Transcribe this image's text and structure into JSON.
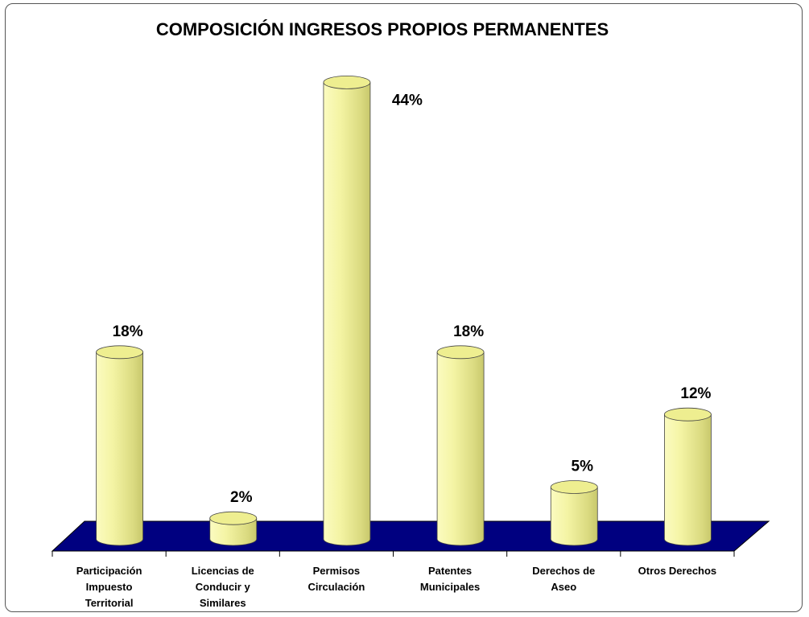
{
  "chart_data": {
    "type": "bar3d",
    "title": "COMPOSICIÓN INGRESOS PROPIOS PERMANENTES",
    "categories": [
      "Participación\nImpuesto\nTerritorial",
      "Licencias de\nConducir y\nSimilares",
      "Permisos\nCirculación",
      "Patentes\nMunicipales",
      "Derechos de\nAseo",
      "Otros Derechos"
    ],
    "values": [
      18,
      2,
      44,
      18,
      5,
      12
    ],
    "value_labels": [
      "18%",
      "2%",
      "44%",
      "18%",
      "5%",
      "12%"
    ],
    "color": "#f7f7a8",
    "floor_color": "#000080"
  }
}
